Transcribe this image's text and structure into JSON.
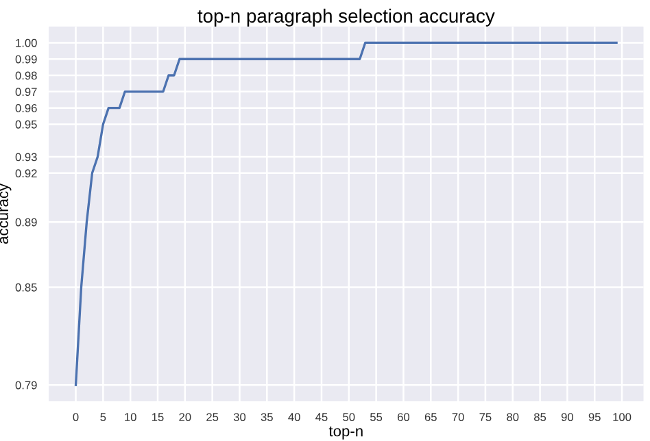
{
  "chart_data": {
    "type": "line",
    "title": "top-n paragraph selection accuracy",
    "xlabel": "top-n",
    "ylabel": "accuracy",
    "x": [
      0,
      1,
      2,
      3,
      4,
      5,
      6,
      8,
      9,
      16,
      17,
      18,
      19,
      52,
      53,
      99
    ],
    "series": [
      {
        "color": "#4c72b0",
        "values": [
          0.79,
          0.85,
          0.89,
          0.92,
          0.93,
          0.95,
          0.96,
          0.96,
          0.97,
          0.97,
          0.98,
          0.98,
          0.99,
          0.99,
          1.0,
          1.0
        ]
      }
    ],
    "xlim": [
      -4.95,
      103.95
    ],
    "ylim": [
      0.78,
      1.01
    ],
    "xticks": [
      0,
      5,
      10,
      15,
      20,
      25,
      30,
      35,
      40,
      45,
      50,
      55,
      60,
      65,
      70,
      75,
      80,
      85,
      90,
      95,
      100
    ],
    "yticks": [
      0.79,
      0.85,
      0.89,
      0.92,
      0.93,
      0.95,
      0.96,
      0.97,
      0.98,
      0.99,
      {
        "value": 1.0,
        "label": "1.00"
      }
    ],
    "grid": true,
    "legend": false,
    "marker": "none",
    "line_style": "solid"
  }
}
